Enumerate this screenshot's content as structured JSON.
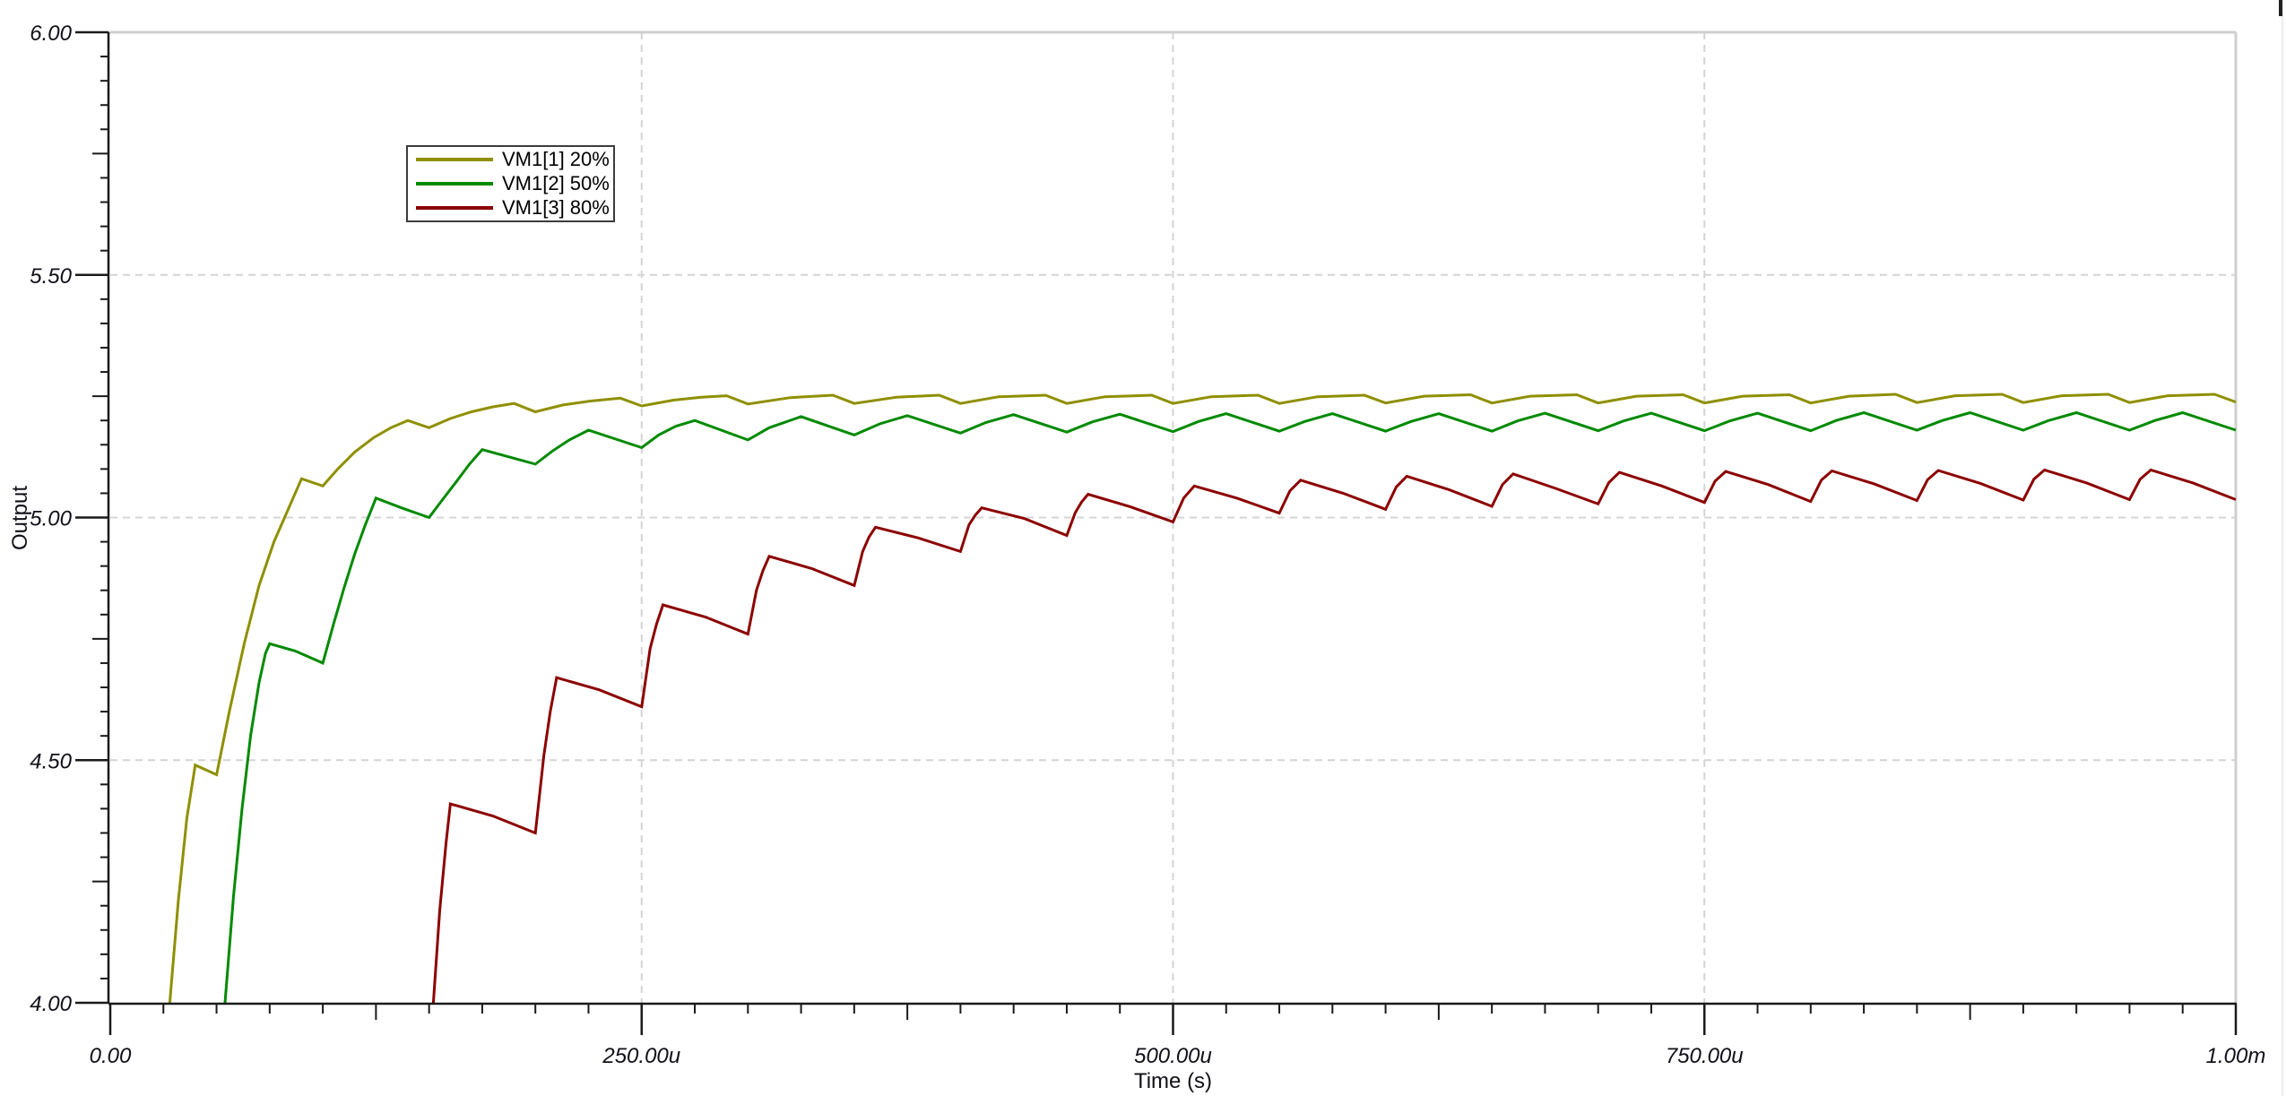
{
  "chart_data": {
    "type": "line",
    "title": "",
    "xlabel": "Time (s)",
    "ylabel": "Output",
    "xlim_us": [
      0,
      1000
    ],
    "ylim": [
      4.0,
      6.0
    ],
    "grid": true,
    "legend_position": "top-left-inset",
    "x_major_ticks": [
      {
        "t_us": 0,
        "label": "0.00"
      },
      {
        "t_us": 250,
        "label": "250.00u"
      },
      {
        "t_us": 500,
        "label": "500.00u"
      },
      {
        "t_us": 750,
        "label": "750.00u"
      },
      {
        "t_us": 1000,
        "label": "1.00m"
      }
    ],
    "x_minor_step_us": 25,
    "x_medium_step_us": 125,
    "y_major_ticks": [
      {
        "v": 6.0,
        "label": "6.00"
      },
      {
        "v": 5.5,
        "label": "5.50"
      },
      {
        "v": 5.0,
        "label": "5.00"
      },
      {
        "v": 4.5,
        "label": "4.50"
      },
      {
        "v": 4.0,
        "label": "4.00"
      }
    ],
    "y_minor_step": 0.05,
    "y_medium_step": 0.25,
    "grid_dashed_h_at": [
      5.5,
      5.0,
      4.5
    ],
    "grid_dashed_v_at_us": [
      250,
      500,
      750
    ],
    "colors": {
      "grid": "#d4d4d4",
      "border": "#cfcfcf",
      "axis": "#1a1a1a",
      "text": "#101018"
    },
    "switching_period_us": 50,
    "series": [
      {
        "name": "VM1[1] 20%",
        "color": "#8f8f00",
        "points": [
          [
            27,
            3.93
          ],
          [
            28,
            4.0
          ],
          [
            32,
            4.21
          ],
          [
            36,
            4.38
          ],
          [
            40,
            4.49
          ],
          [
            50,
            4.47
          ],
          [
            56,
            4.6
          ],
          [
            63,
            4.74
          ],
          [
            70,
            4.86
          ],
          [
            77,
            4.95
          ],
          [
            84,
            5.02
          ],
          [
            90,
            5.08
          ],
          [
            100,
            5.065
          ],
          [
            107,
            5.1
          ],
          [
            115,
            5.135
          ],
          [
            124,
            5.165
          ],
          [
            132,
            5.185
          ],
          [
            140,
            5.2
          ],
          [
            150,
            5.185
          ],
          [
            160,
            5.204
          ],
          [
            170,
            5.218
          ],
          [
            180,
            5.228
          ],
          [
            190,
            5.235
          ],
          [
            200,
            5.218
          ],
          [
            213,
            5.232
          ],
          [
            226,
            5.24
          ],
          [
            240,
            5.246
          ],
          [
            250,
            5.23
          ],
          [
            265,
            5.242
          ],
          [
            278,
            5.248
          ],
          [
            290,
            5.251
          ],
          [
            300,
            5.234
          ],
          [
            320,
            5.247
          ],
          [
            340,
            5.252
          ],
          [
            350,
            5.235
          ],
          [
            370,
            5.248
          ],
          [
            390,
            5.252
          ],
          [
            400,
            5.235
          ],
          [
            418,
            5.249
          ],
          [
            440,
            5.252
          ],
          [
            450,
            5.235
          ],
          [
            468,
            5.249
          ],
          [
            490,
            5.252
          ],
          [
            500,
            5.235
          ],
          [
            518,
            5.249
          ],
          [
            540,
            5.252
          ],
          [
            550,
            5.235
          ],
          [
            568,
            5.249
          ],
          [
            590,
            5.252
          ],
          [
            600,
            5.236
          ],
          [
            618,
            5.25
          ],
          [
            640,
            5.253
          ],
          [
            650,
            5.236
          ],
          [
            668,
            5.25
          ],
          [
            690,
            5.253
          ],
          [
            700,
            5.236
          ],
          [
            718,
            5.25
          ],
          [
            740,
            5.253
          ],
          [
            750,
            5.236
          ],
          [
            768,
            5.25
          ],
          [
            790,
            5.253
          ],
          [
            800,
            5.236
          ],
          [
            818,
            5.25
          ],
          [
            840,
            5.254
          ],
          [
            850,
            5.237
          ],
          [
            868,
            5.251
          ],
          [
            890,
            5.254
          ],
          [
            900,
            5.237
          ],
          [
            918,
            5.251
          ],
          [
            940,
            5.254
          ],
          [
            950,
            5.237
          ],
          [
            968,
            5.251
          ],
          [
            990,
            5.254
          ],
          [
            1000,
            5.238
          ]
        ]
      },
      {
        "name": "VM1[2] 50%",
        "color": "#008a00",
        "points": [
          [
            53,
            3.93
          ],
          [
            54,
            4.0
          ],
          [
            58,
            4.22
          ],
          [
            62,
            4.4
          ],
          [
            66,
            4.55
          ],
          [
            70,
            4.66
          ],
          [
            73,
            4.72
          ],
          [
            75,
            4.74
          ],
          [
            87,
            4.725
          ],
          [
            100,
            4.7
          ],
          [
            105,
            4.78
          ],
          [
            110,
            4.855
          ],
          [
            115,
            4.925
          ],
          [
            120,
            4.985
          ],
          [
            125,
            5.04
          ],
          [
            137,
            5.02
          ],
          [
            150,
            5.0
          ],
          [
            156,
            5.035
          ],
          [
            163,
            5.075
          ],
          [
            169,
            5.11
          ],
          [
            175,
            5.14
          ],
          [
            200,
            5.11
          ],
          [
            208,
            5.137
          ],
          [
            216,
            5.16
          ],
          [
            225,
            5.18
          ],
          [
            250,
            5.144
          ],
          [
            258,
            5.17
          ],
          [
            266,
            5.188
          ],
          [
            275,
            5.2
          ],
          [
            300,
            5.16
          ],
          [
            310,
            5.185
          ],
          [
            325,
            5.208
          ],
          [
            350,
            5.17
          ],
          [
            362,
            5.193
          ],
          [
            375,
            5.21
          ],
          [
            400,
            5.174
          ],
          [
            412,
            5.196
          ],
          [
            425,
            5.212
          ],
          [
            450,
            5.176
          ],
          [
            462,
            5.197
          ],
          [
            475,
            5.213
          ],
          [
            500,
            5.177
          ],
          [
            512,
            5.198
          ],
          [
            525,
            5.214
          ],
          [
            550,
            5.178
          ],
          [
            562,
            5.198
          ],
          [
            575,
            5.214
          ],
          [
            600,
            5.178
          ],
          [
            612,
            5.198
          ],
          [
            625,
            5.214
          ],
          [
            650,
            5.178
          ],
          [
            662,
            5.199
          ],
          [
            675,
            5.215
          ],
          [
            700,
            5.179
          ],
          [
            712,
            5.199
          ],
          [
            725,
            5.215
          ],
          [
            750,
            5.179
          ],
          [
            762,
            5.199
          ],
          [
            775,
            5.215
          ],
          [
            800,
            5.179
          ],
          [
            812,
            5.2
          ],
          [
            825,
            5.216
          ],
          [
            850,
            5.18
          ],
          [
            862,
            5.2
          ],
          [
            875,
            5.216
          ],
          [
            900,
            5.18
          ],
          [
            912,
            5.2
          ],
          [
            925,
            5.216
          ],
          [
            950,
            5.18
          ],
          [
            962,
            5.2
          ],
          [
            975,
            5.216
          ],
          [
            1000,
            5.18
          ]
        ]
      },
      {
        "name": "VM1[3] 80%",
        "color": "#8c0000",
        "points": [
          [
            151,
            3.93
          ],
          [
            152,
            4.0
          ],
          [
            155,
            4.19
          ],
          [
            158,
            4.33
          ],
          [
            160,
            4.41
          ],
          [
            180,
            4.385
          ],
          [
            200,
            4.35
          ],
          [
            204,
            4.51
          ],
          [
            207,
            4.6
          ],
          [
            210,
            4.67
          ],
          [
            230,
            4.645
          ],
          [
            250,
            4.61
          ],
          [
            254,
            4.73
          ],
          [
            257,
            4.78
          ],
          [
            260,
            4.82
          ],
          [
            280,
            4.795
          ],
          [
            300,
            4.76
          ],
          [
            304,
            4.85
          ],
          [
            307,
            4.89
          ],
          [
            310,
            4.92
          ],
          [
            330,
            4.895
          ],
          [
            350,
            4.86
          ],
          [
            354,
            4.93
          ],
          [
            357,
            4.96
          ],
          [
            360,
            4.98
          ],
          [
            380,
            4.958
          ],
          [
            400,
            4.93
          ],
          [
            404,
            4.985
          ],
          [
            407,
            5.005
          ],
          [
            410,
            5.02
          ],
          [
            430,
            4.998
          ],
          [
            450,
            4.963
          ],
          [
            454,
            5.01
          ],
          [
            457,
            5.032
          ],
          [
            460,
            5.048
          ],
          [
            480,
            5.022
          ],
          [
            500,
            4.991
          ],
          [
            505,
            5.04
          ],
          [
            510,
            5.065
          ],
          [
            530,
            5.04
          ],
          [
            550,
            5.009
          ],
          [
            555,
            5.055
          ],
          [
            560,
            5.077
          ],
          [
            580,
            5.05
          ],
          [
            600,
            5.017
          ],
          [
            605,
            5.063
          ],
          [
            610,
            5.085
          ],
          [
            630,
            5.057
          ],
          [
            650,
            5.023
          ],
          [
            655,
            5.068
          ],
          [
            660,
            5.09
          ],
          [
            680,
            5.06
          ],
          [
            700,
            5.028
          ],
          [
            705,
            5.072
          ],
          [
            710,
            5.093
          ],
          [
            730,
            5.065
          ],
          [
            750,
            5.031
          ],
          [
            755,
            5.075
          ],
          [
            760,
            5.095
          ],
          [
            780,
            5.068
          ],
          [
            800,
            5.033
          ],
          [
            805,
            5.077
          ],
          [
            810,
            5.096
          ],
          [
            830,
            5.069
          ],
          [
            850,
            5.035
          ],
          [
            855,
            5.078
          ],
          [
            860,
            5.097
          ],
          [
            880,
            5.07
          ],
          [
            900,
            5.036
          ],
          [
            905,
            5.079
          ],
          [
            910,
            5.098
          ],
          [
            930,
            5.071
          ],
          [
            950,
            5.037
          ],
          [
            955,
            5.079
          ],
          [
            960,
            5.098
          ],
          [
            980,
            5.071
          ],
          [
            1000,
            5.037
          ]
        ]
      }
    ]
  }
}
